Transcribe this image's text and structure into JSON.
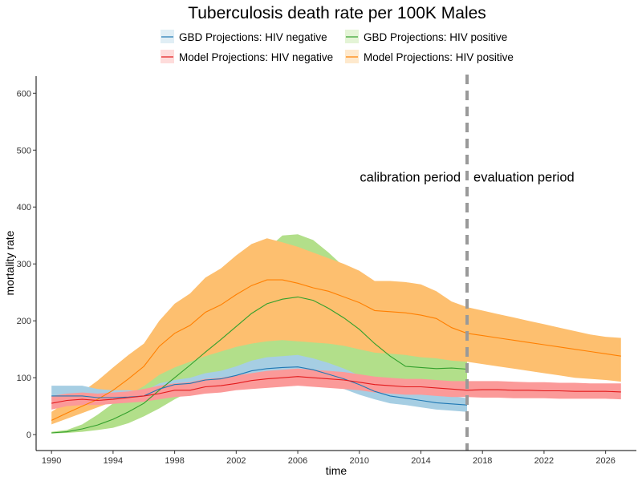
{
  "chart_data": {
    "type": "area",
    "title": "Tuberculosis death rate per 100K Males",
    "xlabel": "time",
    "ylabel": "mortality rate",
    "xlim": [
      1989,
      2028
    ],
    "ylim": [
      -28,
      630
    ],
    "x_ticks": [
      1990,
      1994,
      1998,
      2002,
      2006,
      2010,
      2014,
      2018,
      2022,
      2026
    ],
    "y_ticks": [
      0,
      100,
      200,
      300,
      400,
      500,
      600
    ],
    "grid": false,
    "legend_position": "top",
    "annotations": {
      "left": "calibration period",
      "right": "evaluation period",
      "vline_x": 2017,
      "vline_color": "#999999"
    },
    "series": [
      {
        "name": "GBD Projections: HIV positive",
        "line_color": "#33a02c",
        "band_color": "#b2df8a",
        "x": [
          1990,
          1991,
          1992,
          1993,
          1994,
          1995,
          1996,
          1997,
          1998,
          1999,
          2000,
          2001,
          2002,
          2003,
          2004,
          2005,
          2006,
          2007,
          2008,
          2009,
          2010,
          2011,
          2012,
          2013,
          2014,
          2015,
          2016,
          2017
        ],
        "values": [
          3,
          5,
          10,
          17,
          27,
          40,
          55,
          78,
          100,
          122,
          145,
          167,
          190,
          213,
          230,
          238,
          242,
          236,
          222,
          205,
          185,
          160,
          138,
          120,
          118,
          116,
          117,
          115
        ],
        "lower": [
          2,
          3,
          5,
          8,
          12,
          20,
          32,
          46,
          62,
          76,
          88,
          93,
          98,
          103,
          106,
          108,
          109,
          106,
          102,
          99,
          96,
          88,
          80,
          76,
          74,
          73,
          72,
          70
        ],
        "upper": [
          5,
          8,
          18,
          35,
          55,
          82,
          112,
          150,
          185,
          212,
          234,
          248,
          268,
          290,
          326,
          350,
          352,
          342,
          320,
          295,
          275,
          268,
          258,
          244,
          232,
          222,
          214,
          208
        ]
      },
      {
        "name": "Model Projections: HIV positive",
        "line_color": "#ff7f00",
        "band_color": "#fdbf6f",
        "x": [
          1990,
          1991,
          1992,
          1993,
          1994,
          1995,
          1996,
          1997,
          1998,
          1999,
          2000,
          2001,
          2002,
          2003,
          2004,
          2005,
          2006,
          2007,
          2008,
          2009,
          2010,
          2011,
          2012,
          2013,
          2014,
          2015,
          2016,
          2017,
          2018,
          2019,
          2020,
          2021,
          2022,
          2023,
          2024,
          2025,
          2026,
          2027
        ],
        "values": [
          25,
          38,
          50,
          62,
          78,
          98,
          120,
          155,
          178,
          192,
          215,
          228,
          246,
          262,
          272,
          272,
          266,
          258,
          252,
          242,
          232,
          218,
          216,
          214,
          210,
          204,
          188,
          178,
          174,
          170,
          166,
          162,
          158,
          154,
          150,
          146,
          142,
          138
        ],
        "lower": [
          18,
          28,
          38,
          48,
          58,
          70,
          85,
          105,
          118,
          128,
          138,
          146,
          154,
          160,
          164,
          166,
          164,
          162,
          160,
          156,
          150,
          144,
          142,
          140,
          136,
          134,
          130,
          128,
          124,
          120,
          116,
          112,
          108,
          104,
          100,
          98,
          96,
          93
        ],
        "upper": [
          40,
          58,
          75,
          95,
          118,
          140,
          160,
          200,
          230,
          248,
          276,
          292,
          315,
          335,
          345,
          338,
          330,
          320,
          310,
          300,
          288,
          270,
          270,
          268,
          264,
          252,
          234,
          224,
          218,
          212,
          206,
          200,
          194,
          188,
          182,
          176,
          172,
          170
        ]
      },
      {
        "name": "GBD Projections: HIV negative",
        "line_color": "#1f78b4",
        "band_color": "#a6cee3",
        "x": [
          1990,
          1991,
          1992,
          1993,
          1994,
          1995,
          1996,
          1997,
          1998,
          1999,
          2000,
          2001,
          2002,
          2003,
          2004,
          2005,
          2006,
          2007,
          2008,
          2009,
          2010,
          2011,
          2012,
          2013,
          2014,
          2015,
          2016,
          2017
        ],
        "values": [
          68,
          68,
          68,
          65,
          65,
          66,
          68,
          80,
          88,
          90,
          96,
          98,
          104,
          112,
          116,
          118,
          119,
          114,
          106,
          98,
          88,
          76,
          68,
          64,
          60,
          56,
          54,
          52
        ],
        "lower": [
          60,
          60,
          60,
          58,
          58,
          60,
          62,
          72,
          80,
          82,
          86,
          88,
          92,
          98,
          100,
          100,
          100,
          96,
          88,
          80,
          70,
          62,
          55,
          52,
          48,
          44,
          42,
          40
        ],
        "upper": [
          86,
          86,
          86,
          80,
          78,
          78,
          76,
          90,
          96,
          100,
          108,
          112,
          120,
          130,
          136,
          138,
          140,
          134,
          126,
          116,
          104,
          92,
          84,
          80,
          76,
          72,
          68,
          64
        ]
      },
      {
        "name": "Model Projections: HIV negative",
        "line_color": "#e31a1c",
        "band_color": "#fb9a99",
        "x": [
          1990,
          1991,
          1992,
          1993,
          1994,
          1995,
          1996,
          1997,
          1998,
          1999,
          2000,
          2001,
          2002,
          2003,
          2004,
          2005,
          2006,
          2007,
          2008,
          2009,
          2010,
          2011,
          2012,
          2013,
          2014,
          2015,
          2016,
          2017,
          2018,
          2019,
          2020,
          2021,
          2022,
          2023,
          2024,
          2025,
          2026,
          2027
        ],
        "values": [
          55,
          60,
          62,
          60,
          62,
          65,
          68,
          72,
          78,
          78,
          84,
          86,
          90,
          95,
          98,
          100,
          102,
          100,
          98,
          96,
          92,
          88,
          86,
          84,
          84,
          82,
          80,
          78,
          79,
          79,
          78,
          78,
          77,
          77,
          76,
          76,
          76,
          75
        ],
        "lower": [
          44,
          50,
          52,
          52,
          54,
          56,
          58,
          62,
          66,
          68,
          72,
          74,
          78,
          80,
          82,
          84,
          86,
          84,
          82,
          80,
          78,
          74,
          72,
          70,
          70,
          68,
          66,
          66,
          65,
          65,
          64,
          64,
          64,
          63,
          63,
          63,
          63,
          62
        ],
        "upper": [
          68,
          72,
          74,
          72,
          74,
          76,
          80,
          86,
          90,
          92,
          98,
          100,
          104,
          108,
          112,
          114,
          116,
          114,
          112,
          110,
          106,
          102,
          100,
          98,
          98,
          96,
          94,
          94,
          94,
          94,
          93,
          92,
          92,
          91,
          91,
          90,
          90,
          90
        ]
      }
    ]
  }
}
